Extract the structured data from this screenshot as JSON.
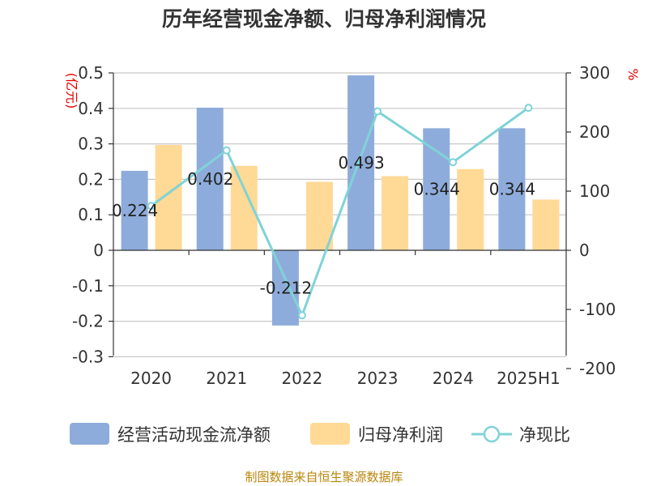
{
  "chart_data": {
    "type": "bar",
    "title": "历年经营现金净额、归母净利润情况",
    "categories": [
      "2020",
      "2021",
      "2022",
      "2023",
      "2024",
      "2025H1"
    ],
    "series": [
      {
        "name": "经营活动现金流净额",
        "type": "bar",
        "axis": "left",
        "color": "#8eacdb",
        "values": [
          0.224,
          0.402,
          -0.212,
          0.493,
          0.344,
          0.344
        ],
        "data_labels": [
          "0.224",
          "0.402",
          "-0.212",
          "0.493",
          "0.344",
          "0.344"
        ]
      },
      {
        "name": "归母净利润",
        "type": "bar",
        "axis": "left",
        "color": "#ffd996",
        "values": [
          0.297,
          0.238,
          0.193,
          0.209,
          0.229,
          0.143
        ]
      },
      {
        "name": "净现比",
        "type": "line",
        "axis": "right",
        "color": "#7fd3d7",
        "values": [
          75,
          169,
          -110,
          235,
          149,
          241
        ]
      }
    ],
    "y_left": {
      "unit": "(亿元)",
      "min": -0.3,
      "max": 0.5,
      "ticks": [
        0.5,
        0.4,
        0.3,
        0.2,
        0.1,
        0,
        -0.1,
        -0.2,
        -0.3
      ],
      "tick_labels": [
        "0.5",
        "0.4",
        "0.3",
        "0.2",
        "0.1",
        "0",
        "-0.1",
        "-0.2",
        "-0.3"
      ]
    },
    "y_right": {
      "unit": "%",
      "min": -200,
      "max": 300,
      "ticks": [
        300,
        200,
        100,
        0,
        -100,
        -200
      ],
      "tick_labels": [
        "300",
        "200",
        "100",
        "0",
        "-100",
        "-200"
      ]
    },
    "grid": true,
    "legend_position": "bottom"
  },
  "source": "制图数据来自恒生聚源数据库"
}
